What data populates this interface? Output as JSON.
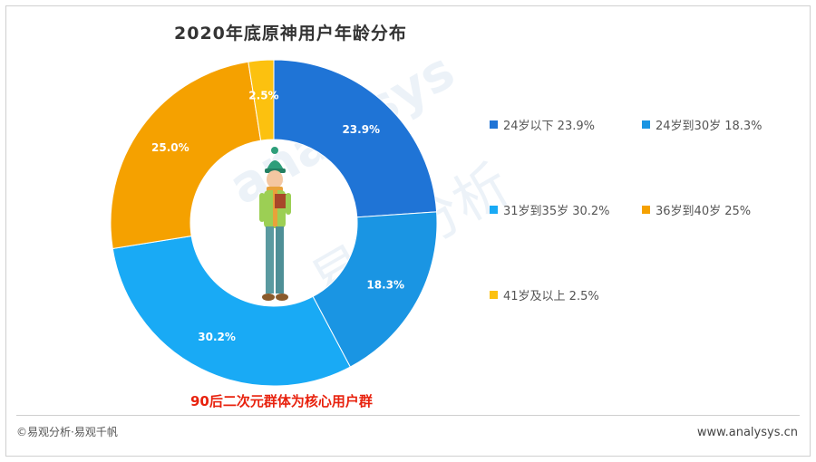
{
  "header": {
    "title": "2020年底原神用户年龄分布"
  },
  "chart_data": {
    "type": "pie",
    "style": "donut",
    "title": "2020年底原神用户年龄分布",
    "unit": "%",
    "categories": [
      "24岁以下",
      "24岁到30岁",
      "31岁到35岁",
      "36岁到40岁",
      "41岁及以上"
    ],
    "values": [
      23.9,
      18.3,
      30.2,
      25.0,
      2.5
    ],
    "data_labels": [
      "23.9%",
      "18.3%",
      "30.2%",
      "25.0%",
      "2.5%"
    ],
    "legend_labels": [
      "24岁以下 23.9%",
      "24岁到30岁 18.3%",
      "31岁到35岁 30.2%",
      "36岁到40岁 25%",
      "41岁及以上 2.5%"
    ],
    "colors": [
      "#1f74d6",
      "#1a95e3",
      "#19aaf5",
      "#f5a100",
      "#fcc10f"
    ],
    "legend_placement": "right",
    "start_angle": "top, clockwise"
  },
  "annotation": {
    "text": "90后二次元群体为核心用户群",
    "color": "#e8220e"
  },
  "watermark": {
    "latin": "analysys",
    "chinese": "易观分析"
  },
  "footer": {
    "copyright": "©易观分析·易观千帆",
    "website": "www.analysys.cn"
  }
}
